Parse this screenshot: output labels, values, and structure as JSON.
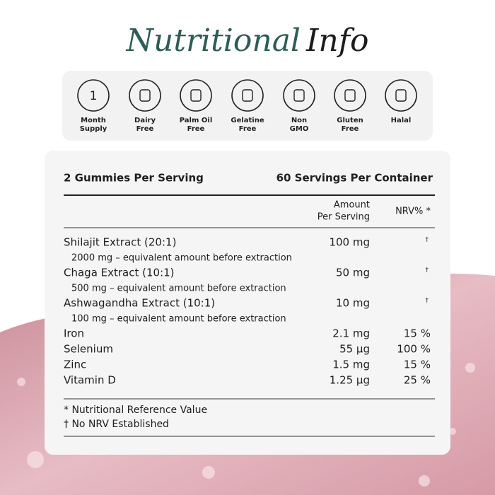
{
  "header": {
    "title_part1": "Nutritional",
    "title_part2": "Info"
  },
  "badges": [
    {
      "icon_text": "1",
      "label": [
        "Month",
        "Supply"
      ]
    },
    {
      "label": [
        "Dairy",
        "Free"
      ]
    },
    {
      "label": [
        "Palm Oil",
        "Free"
      ]
    },
    {
      "label": [
        "Gelatine",
        "Free"
      ]
    },
    {
      "label": [
        "Non",
        "GMO"
      ]
    },
    {
      "label": [
        "Gluten",
        "Free"
      ]
    },
    {
      "label": [
        "Halal"
      ]
    }
  ],
  "table": {
    "serving_size": "2 Gummies Per Serving",
    "servings_per_container": "60 Servings Per Container",
    "amount_header": [
      "Amount",
      "Per Serving"
    ],
    "nrv_header": "NRV% *",
    "rows": [
      {
        "name": "Shilajit Extract (20:1)",
        "amount": "100 mg",
        "nrv": "†",
        "note": "2000 mg – equivalent amount before extraction"
      },
      {
        "name": "Chaga Extract (10:1)",
        "amount": "50 mg",
        "nrv": "†",
        "note": "500 mg – equivalent amount before extraction"
      },
      {
        "name": "Ashwagandha Extract (10:1)",
        "amount": "10 mg",
        "nrv": "†",
        "note": "100 mg – equivalent amount before extraction"
      },
      {
        "name": "Iron",
        "amount": "2.1 mg",
        "nrv": "15 %"
      },
      {
        "name": "Selenium",
        "amount": "55 µg",
        "nrv": "100 %"
      },
      {
        "name": "Zinc",
        "amount": "1.5 mg",
        "nrv": "15 %"
      },
      {
        "name": "Vitamin D",
        "amount": "1.25 µg",
        "nrv": "25 %"
      }
    ],
    "footnotes": [
      "* Nutritional Reference Value",
      "† No NRV Established"
    ]
  }
}
